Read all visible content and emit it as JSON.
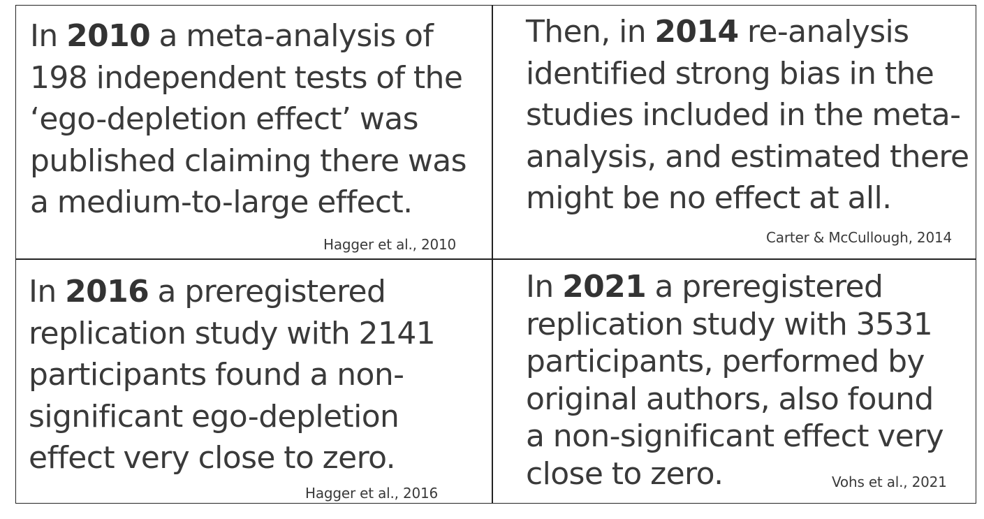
{
  "cells": [
    {
      "lines": [
        {
          "pre": "In ",
          "bold": "2010",
          "post": " a meta-analysis of"
        },
        {
          "pre": "198 independent tests of the",
          "bold": "",
          "post": ""
        },
        {
          "pre": "‘ego-depletion effect’ was",
          "bold": "",
          "post": ""
        },
        {
          "pre": "published claiming there was",
          "bold": "",
          "post": ""
        },
        {
          "pre": "a medium-to-large effect.",
          "bold": "",
          "post": ""
        }
      ],
      "citation": "Hagger et al., 2010"
    },
    {
      "lines": [
        {
          "pre": "Then, in ",
          "bold": "2014",
          "post": " re-analysis"
        },
        {
          "pre": "identified strong bias in the",
          "bold": "",
          "post": ""
        },
        {
          "pre": "studies included in the meta-",
          "bold": "",
          "post": ""
        },
        {
          "pre": "analysis, and estimated there",
          "bold": "",
          "post": ""
        },
        {
          "pre": "might be no effect at all.",
          "bold": "",
          "post": ""
        }
      ],
      "citation": "Carter & McCullough, 2014"
    },
    {
      "lines": [
        {
          "pre": "In ",
          "bold": "2016",
          "post": " a preregistered"
        },
        {
          "pre": "replication study with 2141",
          "bold": "",
          "post": ""
        },
        {
          "pre": "participants found a non-",
          "bold": "",
          "post": ""
        },
        {
          "pre": "significant ego-depletion",
          "bold": "",
          "post": ""
        },
        {
          "pre": "effect very close to zero.",
          "bold": "",
          "post": ""
        }
      ],
      "citation": "Hagger et al., 2016"
    },
    {
      "lines": [
        {
          "pre": "In ",
          "bold": "2021",
          "post": " a preregistered"
        },
        {
          "pre": "replication study with 3531",
          "bold": "",
          "post": ""
        },
        {
          "pre": "participants, performed by",
          "bold": "",
          "post": ""
        },
        {
          "pre": "original authors, also found",
          "bold": "",
          "post": ""
        },
        {
          "pre": "a non-significant effect very",
          "bold": "",
          "post": ""
        },
        {
          "pre": "close to zero.",
          "bold": "",
          "post": ""
        }
      ],
      "citation": "Vohs et al., 2021"
    }
  ]
}
